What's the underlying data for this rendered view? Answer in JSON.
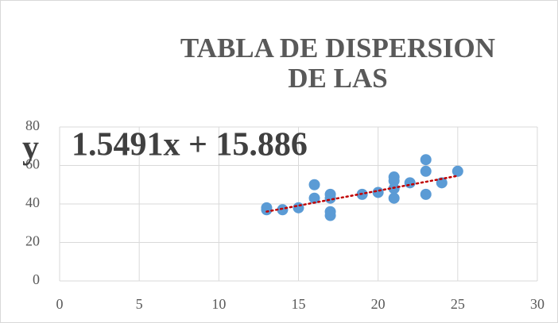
{
  "chart_data": {
    "type": "scatter",
    "title": [
      "TABLA DE DISPERSION",
      "DE LAS"
    ],
    "annotations": [
      "y",
      "1.5491x + 15.886"
    ],
    "x": [
      13,
      13,
      14,
      15,
      16,
      16,
      17,
      17,
      17,
      17,
      19,
      20,
      21,
      21,
      21,
      21,
      22,
      23,
      23,
      23,
      24,
      25
    ],
    "values": [
      38,
      37,
      37,
      38,
      50,
      43,
      45,
      43,
      36,
      34,
      45,
      46,
      54,
      52,
      48,
      43,
      51,
      63,
      57,
      45,
      51,
      57
    ],
    "color": "#5b9bd5",
    "trendline": {
      "slope": 1.5491,
      "intercept": 15.886,
      "color": "#c00000"
    },
    "xlim": [
      0,
      30
    ],
    "xticks": [
      0,
      5,
      10,
      15,
      20,
      25,
      30
    ],
    "ylim": [
      0,
      80
    ],
    "yticks": [
      0,
      20,
      40,
      60,
      80
    ],
    "grid": true
  }
}
